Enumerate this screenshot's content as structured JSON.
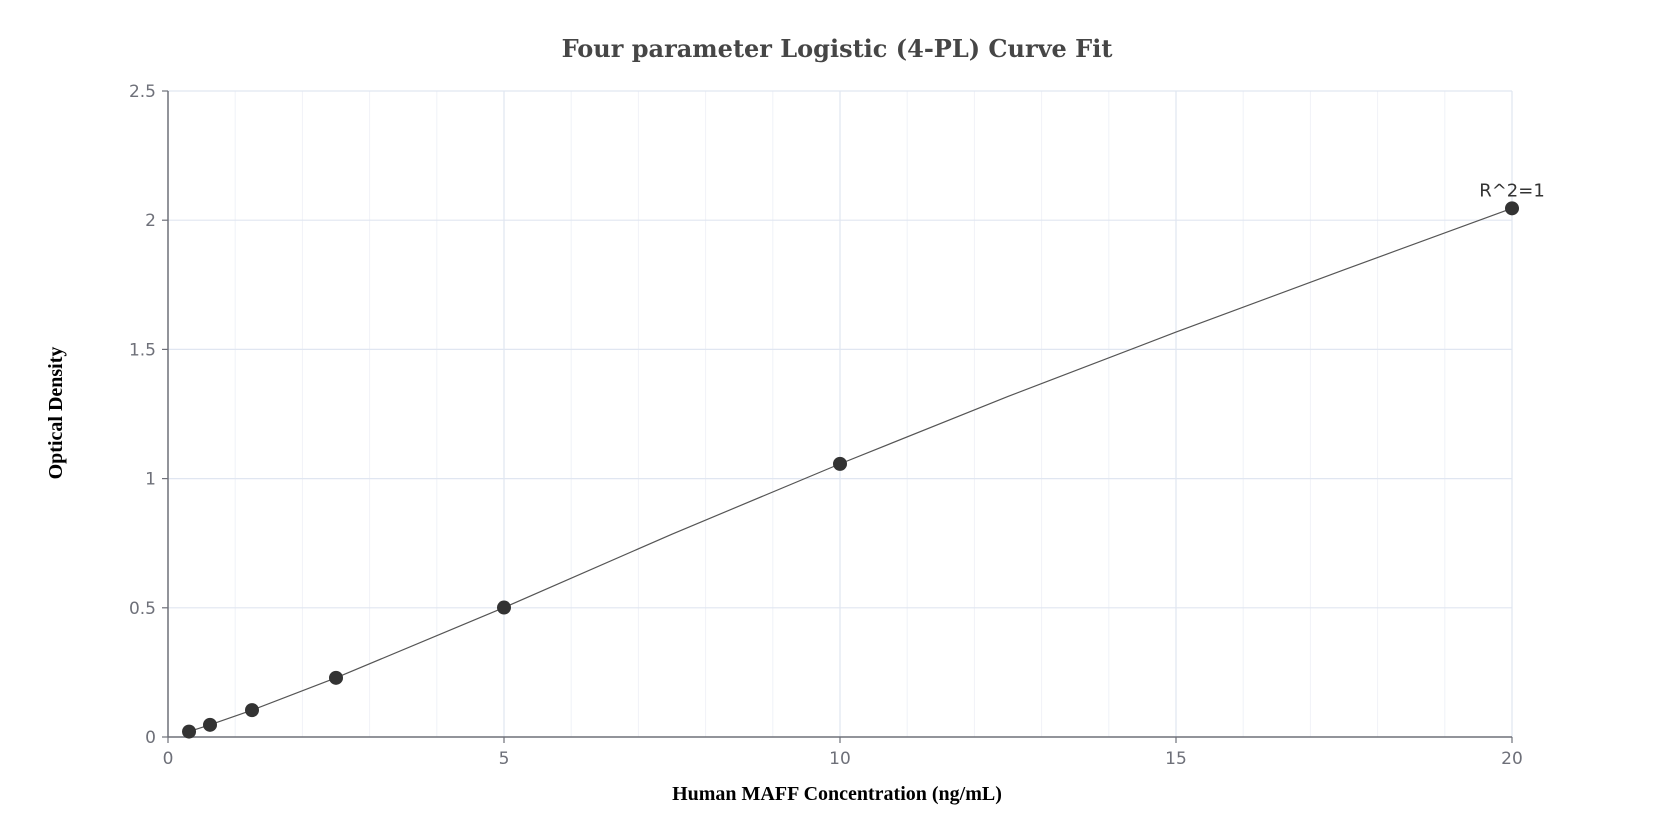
{
  "chart_data": {
    "type": "scatter",
    "title": "Four parameter Logistic (4-PL) Curve Fit",
    "xlabel": "Human MAFF Concentration (ng/mL)",
    "ylabel": "Optical Density",
    "xlim": [
      0,
      20
    ],
    "ylim": [
      0,
      2.5
    ],
    "x_ticks": [
      "0",
      "5",
      "10",
      "15",
      "20"
    ],
    "y_ticks": [
      "0",
      "0.5",
      "1",
      "1.5",
      "2",
      "2.5"
    ],
    "grid": true,
    "series": [
      {
        "x": [
          0.313,
          0.625,
          1.25,
          2.5,
          5,
          10,
          20
        ],
        "values": [
          0.021,
          0.047,
          0.104,
          0.229,
          0.501,
          1.057,
          2.046
        ]
      }
    ],
    "fit_curve": {
      "x": [
        0.313,
        0.625,
        1.25,
        2.5,
        5,
        7.5,
        10,
        12.5,
        15,
        17.5,
        20
      ],
      "values": [
        0.021,
        0.047,
        0.104,
        0.229,
        0.501,
        0.785,
        1.057,
        1.318,
        1.567,
        1.808,
        2.046
      ]
    },
    "annotations": [
      {
        "text": "R^2=1",
        "x": 20,
        "y": 2.046
      }
    ],
    "colors": {
      "points": "#333333",
      "line": "#555555",
      "grid_major": "#e0e6f1",
      "grid_minor": "#f0f2f7",
      "axis": "#6e7079"
    }
  }
}
